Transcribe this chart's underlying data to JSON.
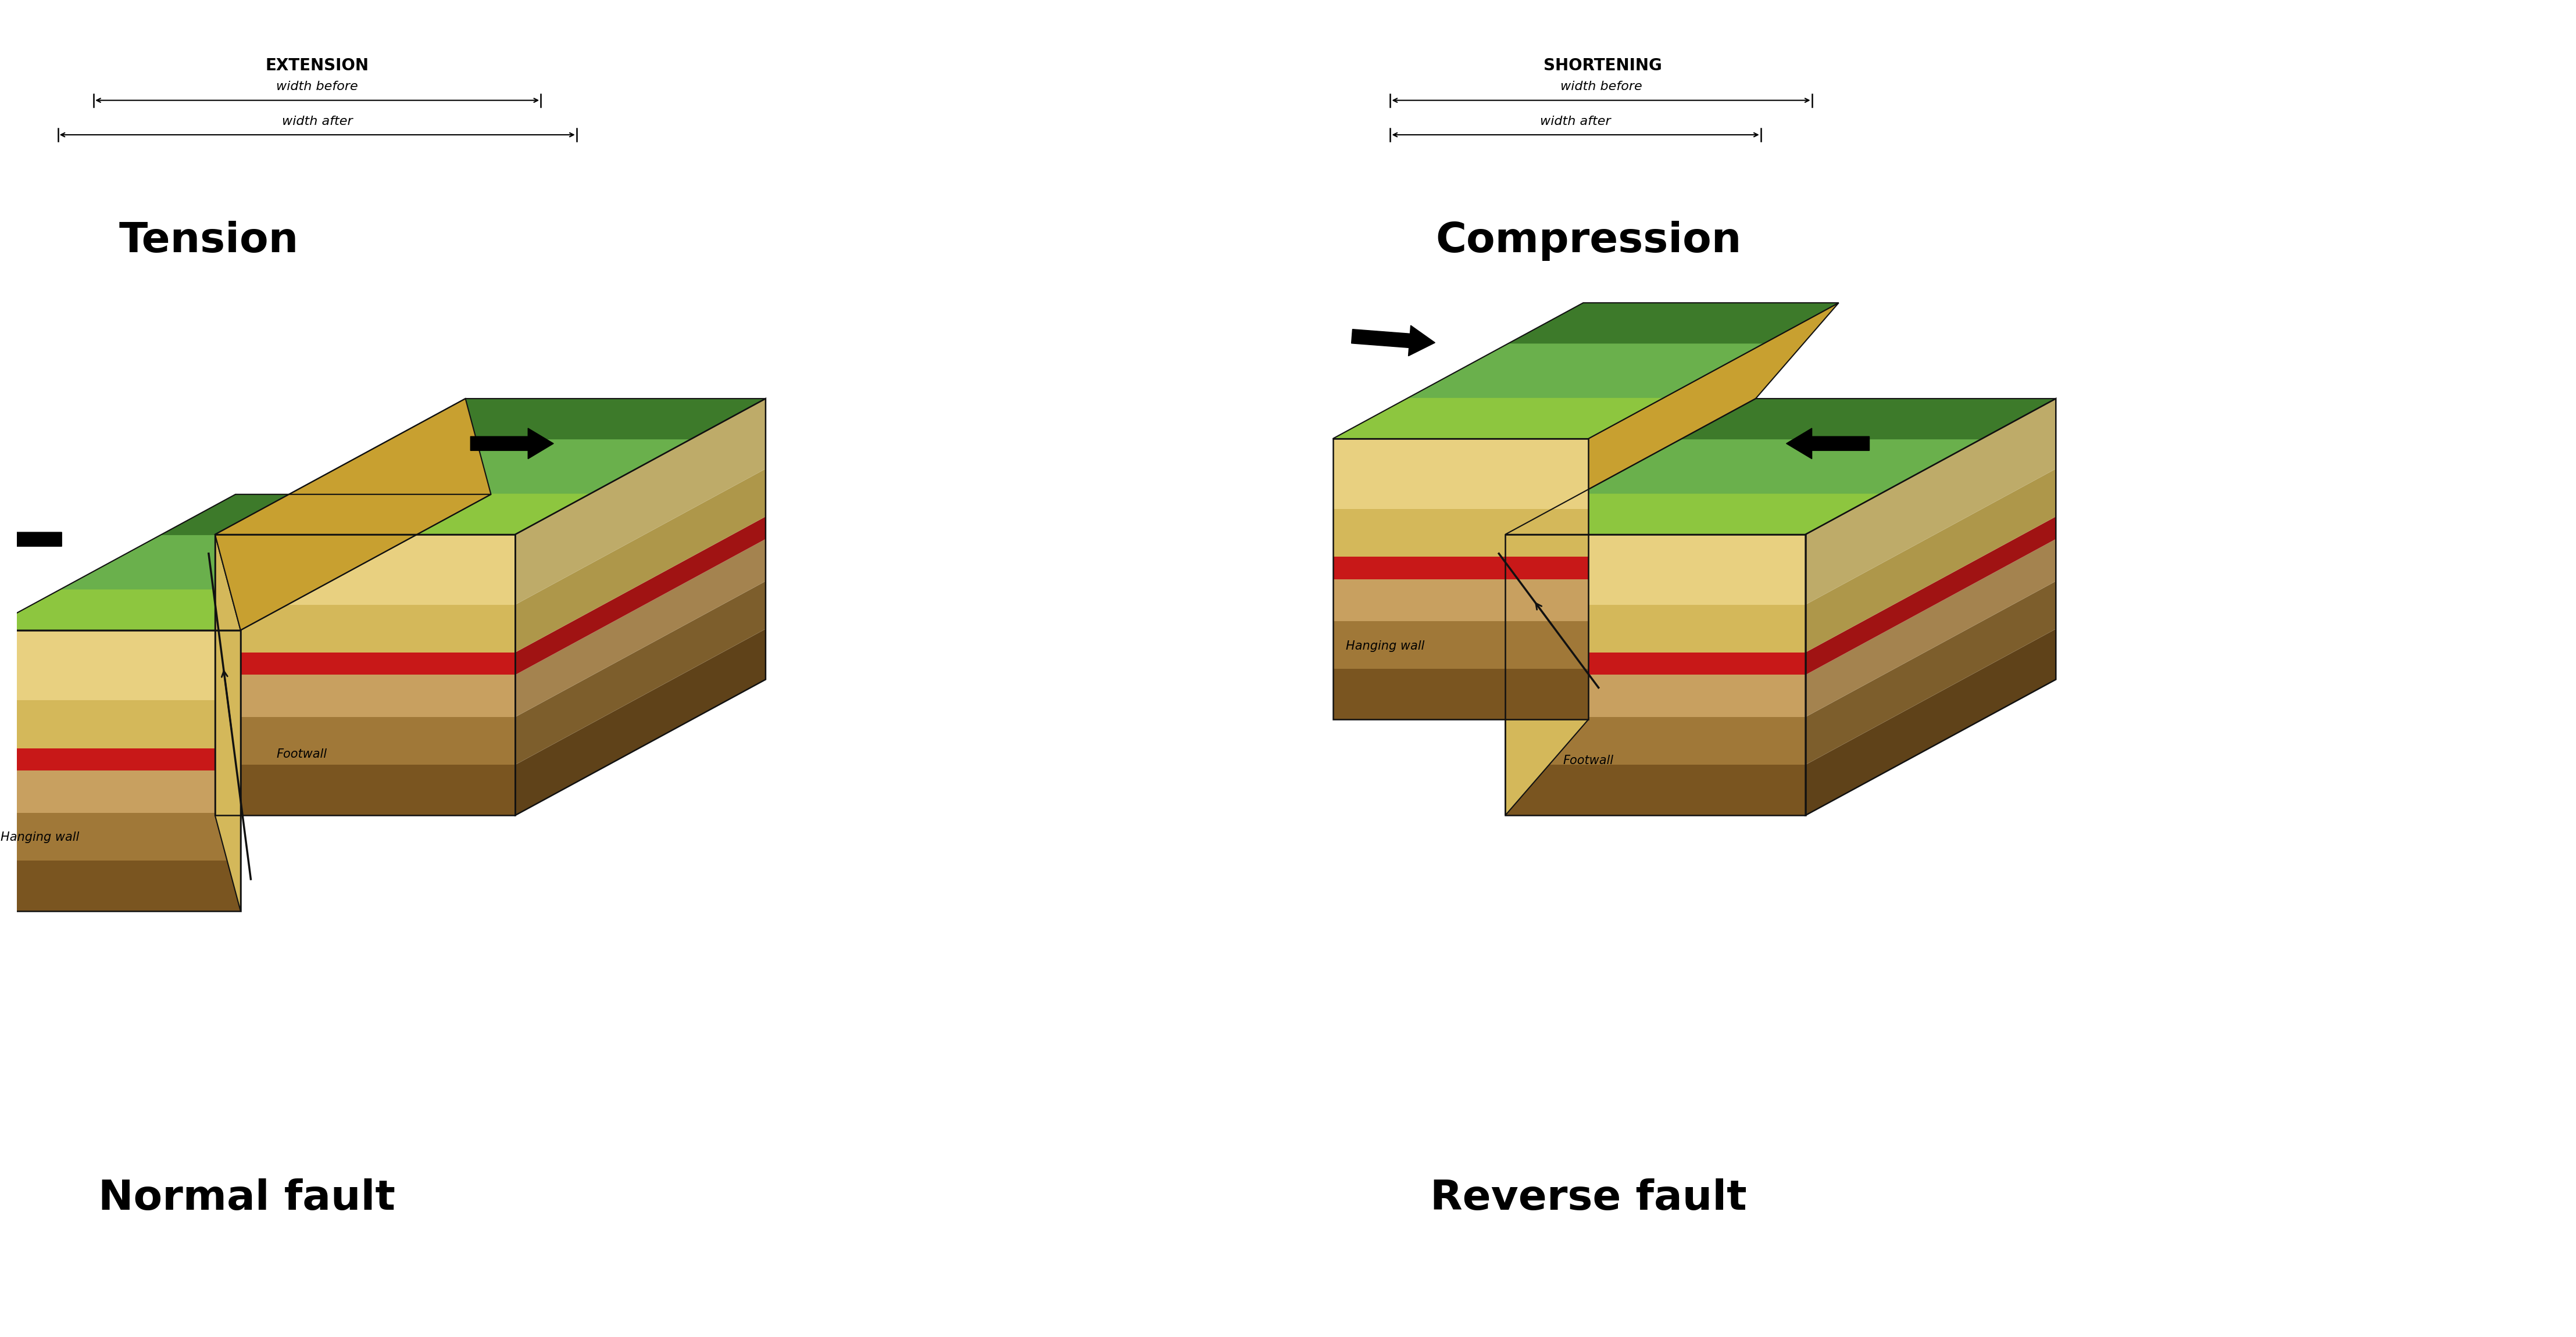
{
  "fig_width": 44.31,
  "fig_height": 23.01,
  "bg_color": "#ffffff",
  "colors": {
    "green_light": "#8dc63f",
    "green_mid": "#6ab04c",
    "green_dark": "#3d7a2a",
    "tan_top": "#e8d080",
    "tan_mid": "#d4b85a",
    "tan_dark": "#c8a030",
    "brown_light": "#c8a060",
    "brown_mid": "#a07838",
    "brown_dark": "#7a5520",
    "red_stripe": "#c81818",
    "outline": "#111111",
    "black": "#000000",
    "white": "#ffffff"
  },
  "left": {
    "title": "Tension",
    "subtitle": "Normal fault",
    "top_label": "EXTENSION",
    "wb_label": "width before",
    "wa_label": "width after"
  },
  "right": {
    "title": "Compression",
    "subtitle": "Reverse fault",
    "top_label": "SHORTENING",
    "wb_label": "width before",
    "wa_label": "width after"
  }
}
